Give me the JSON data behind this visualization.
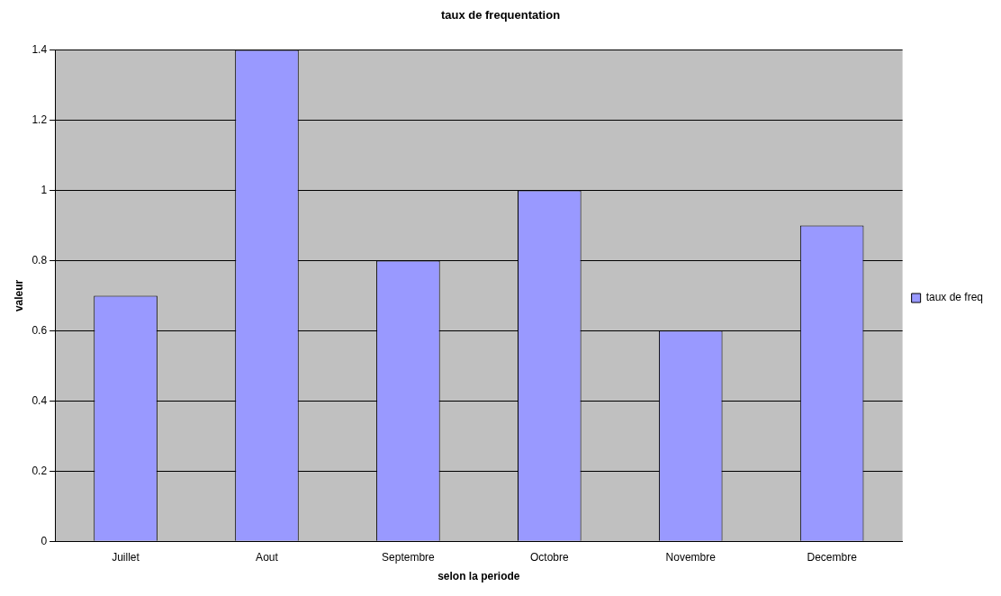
{
  "chart_data": {
    "type": "bar",
    "title": "taux de frequentation",
    "xlabel": "selon la periode",
    "ylabel": "valeur",
    "categories": [
      "Juillet",
      "Aout",
      "Septembre",
      "Octobre",
      "Novembre",
      "Decembre"
    ],
    "series": [
      {
        "name": "taux de freq",
        "color": "#9999ff",
        "values": [
          0.7,
          1.4,
          0.8,
          1.0,
          0.6,
          0.9
        ]
      }
    ],
    "ylim": [
      0,
      1.4
    ],
    "yticks": [
      0,
      0.2,
      0.4,
      0.6,
      0.8,
      1,
      1.2,
      1.4
    ],
    "grid": "y",
    "legend": "right"
  }
}
